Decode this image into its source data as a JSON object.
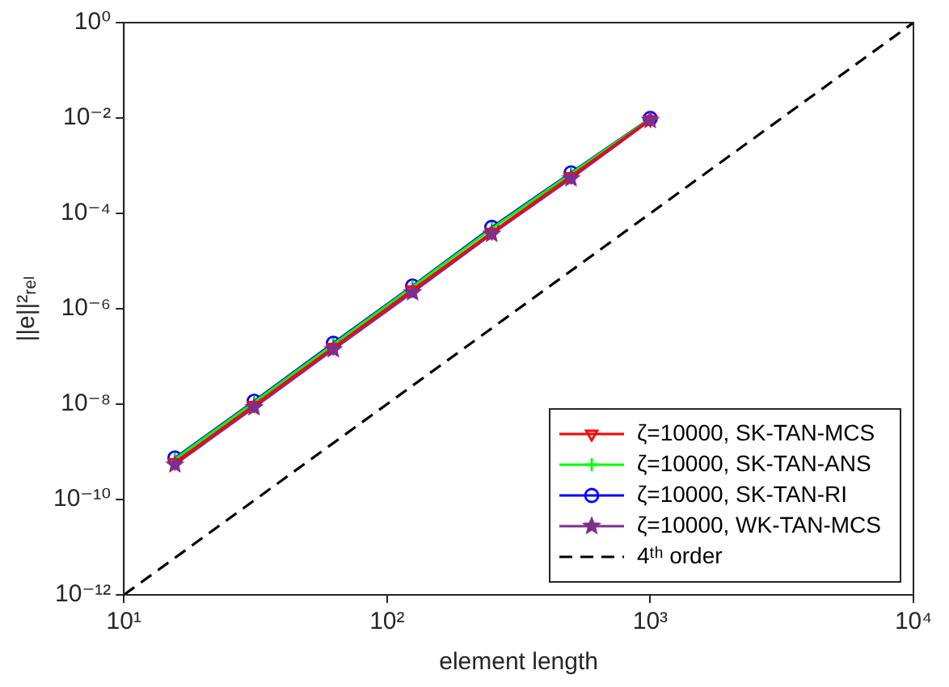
{
  "chart_data": {
    "type": "line",
    "xlabel": "element length",
    "ylabel": "||e||²ᵣₑₗ",
    "log": "xy",
    "grid": false,
    "legend": "bottom right",
    "x": [
      15.625,
      31.25,
      62.5,
      125,
      250,
      500,
      1000
    ],
    "xlim": [
      10,
      10000
    ],
    "ylim": [
      1e-12,
      1
    ],
    "xticks": [
      {
        "value": 10,
        "label": "10¹"
      },
      {
        "value": 100,
        "label": "10²"
      },
      {
        "value": 1000,
        "label": "10³"
      },
      {
        "value": 10000,
        "label": "10⁴"
      }
    ],
    "yticks": [
      {
        "value": 1e-12,
        "label": "10⁻¹²"
      },
      {
        "value": 1e-10,
        "label": "10⁻¹⁰"
      },
      {
        "value": 1e-08,
        "label": "10⁻⁸"
      },
      {
        "value": 1e-06,
        "label": "10⁻⁶"
      },
      {
        "value": 0.0001,
        "label": "10⁻⁴"
      },
      {
        "value": 0.01,
        "label": "10⁻²"
      },
      {
        "value": 1,
        "label": "10⁰"
      }
    ],
    "series": [
      {
        "name": "ζ=10000, SK-TAN-MCS",
        "color": "#ff0000",
        "marker": "triangle",
        "values": [
          6e-10,
          9.5e-09,
          1.55e-07,
          2.5e-06,
          4e-05,
          0.0006,
          0.0093
        ]
      },
      {
        "name": "ζ=10000, SK-TAN-ANS",
        "color": "#00ff00",
        "marker": "cross",
        "values": [
          7e-10,
          1.1e-08,
          1.8e-07,
          2.9e-06,
          4.8e-05,
          0.00068,
          0.0096
        ]
      },
      {
        "name": "ζ=10000, SK-TAN-RI",
        "color": "#0000ff",
        "marker": "circle",
        "values": [
          7.4e-10,
          1.15e-08,
          1.9e-07,
          3e-06,
          5.1e-05,
          0.00071,
          0.0098
        ]
      },
      {
        "name": "ζ=10000, WK-TAN-MCS",
        "color": "#7e2f8e",
        "marker": "star",
        "values": [
          5.4e-10,
          8.5e-09,
          1.4e-07,
          2.2e-06,
          3.7e-05,
          0.00054,
          0.009
        ]
      },
      {
        "name": "4ᵗʰ order",
        "color": "#000000",
        "marker": "none",
        "line_style": "dashed",
        "x": [
          10,
          10000
        ],
        "values": [
          1e-12,
          1
        ]
      }
    ]
  }
}
